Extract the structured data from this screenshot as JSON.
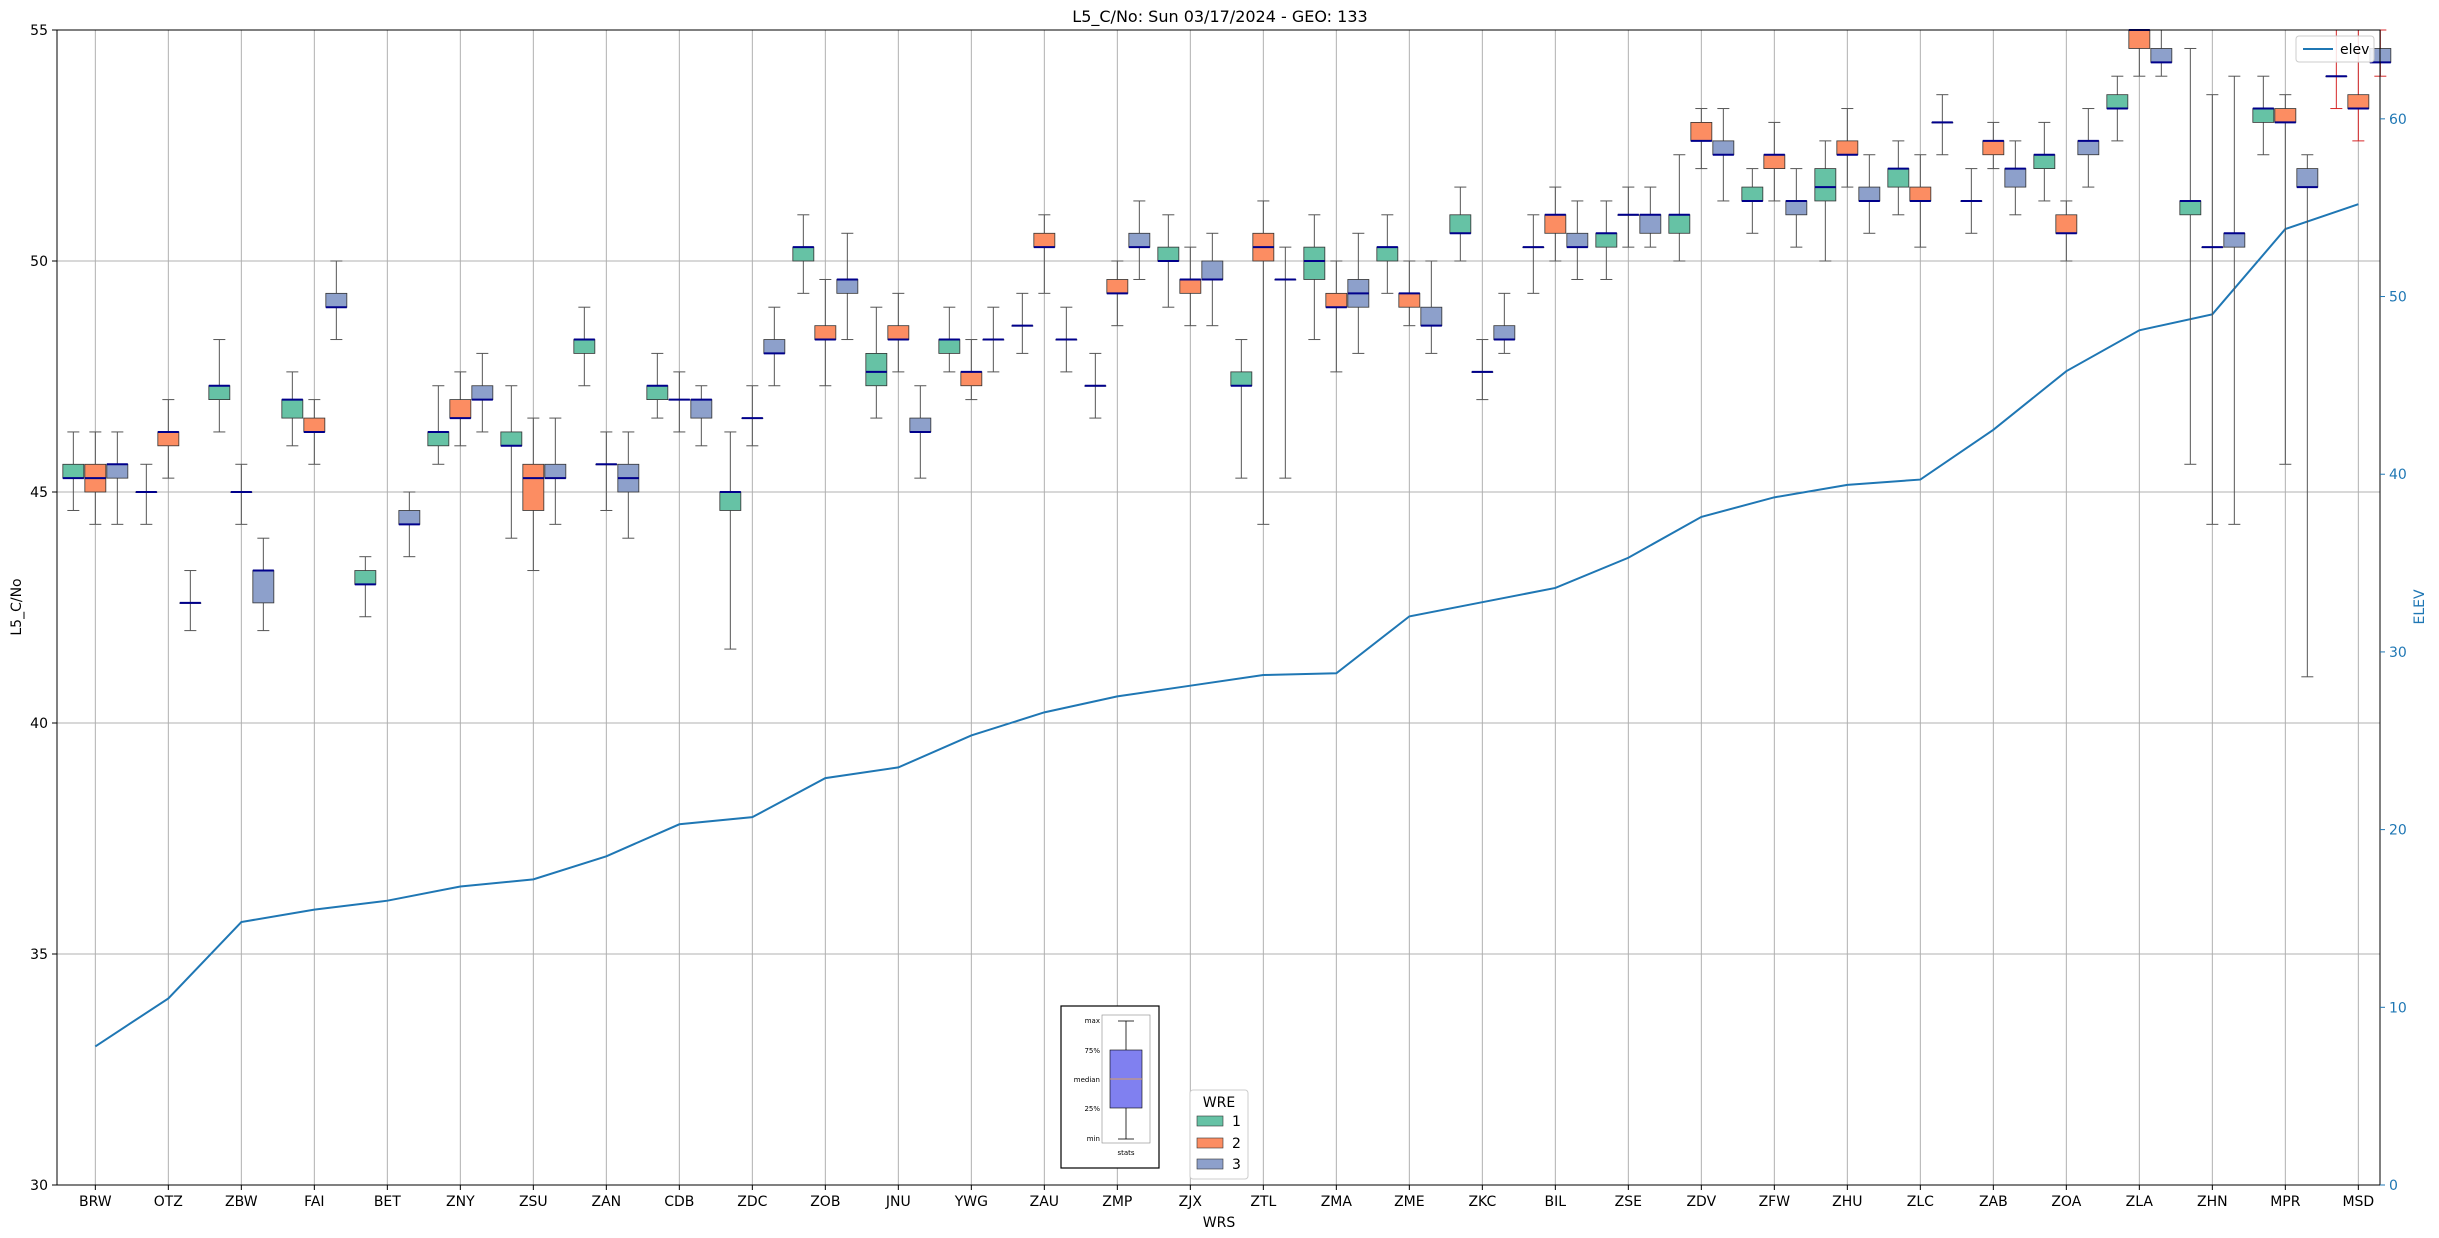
{
  "chart_data": {
    "type": "box",
    "title": "L5_C/No: Sun 03/17/2024 - GEO: 133",
    "xlabel": "WRS",
    "ylabel": "L5_C/No",
    "ylabel_right": "ELEV",
    "ylim": [
      30,
      55
    ],
    "ylim_right": [
      0,
      65
    ],
    "yticks": [
      30,
      35,
      40,
      45,
      50,
      55
    ],
    "yticks_right": [
      0,
      10,
      20,
      30,
      40,
      50,
      60
    ],
    "grid": true,
    "categories": [
      "BRW",
      "OTZ",
      "ZBW",
      "FAI",
      "BET",
      "ZNY",
      "ZSU",
      "ZAN",
      "CDB",
      "ZDC",
      "ZOB",
      "JNU",
      "YWG",
      "ZAU",
      "ZMP",
      "ZJX",
      "ZTL",
      "ZMA",
      "ZME",
      "ZKC",
      "BIL",
      "ZSE",
      "ZDV",
      "ZFW",
      "ZHU",
      "ZLC",
      "ZAB",
      "ZOA",
      "ZLA",
      "ZHN",
      "MPR",
      "MSD"
    ],
    "box_colors": {
      "1": "#66c2a5",
      "2": "#fc8d62",
      "3": "#8da0cb"
    },
    "median_color": "#00008b",
    "line_color": "#1f77b4",
    "boxes": [
      [
        [
          "1",
          45.3,
          45.6,
          45.3,
          44.6,
          46.3
        ],
        [
          "2",
          45.0,
          45.6,
          45.3,
          44.3,
          46.3
        ],
        [
          "3",
          45.3,
          45.6,
          45.6,
          44.3,
          46.3
        ]
      ],
      [
        [
          "1",
          45.0,
          45.0,
          45.0,
          44.3,
          45.6
        ],
        [
          "2",
          46.0,
          46.3,
          46.3,
          45.3,
          47.0
        ],
        [
          "3",
          42.6,
          42.6,
          42.6,
          42.0,
          43.3
        ]
      ],
      [
        [
          "1",
          47.0,
          47.3,
          47.3,
          46.3,
          48.3
        ],
        [
          "2",
          45.0,
          45.0,
          45.0,
          44.3,
          45.6
        ],
        [
          "3",
          42.6,
          43.3,
          43.3,
          42.0,
          44.0
        ]
      ],
      [
        [
          "1",
          46.6,
          47.0,
          47.0,
          46.0,
          47.6
        ],
        [
          "2",
          46.3,
          46.6,
          46.3,
          45.6,
          47.0
        ],
        [
          "3",
          49.0,
          49.3,
          49.0,
          48.3,
          50.0
        ]
      ],
      [
        [
          "1",
          43.0,
          43.3,
          43.0,
          42.3,
          43.6
        ],
        [
          "2",
          null,
          null,
          null,
          null,
          null
        ],
        [
          "3",
          44.3,
          44.6,
          44.3,
          43.6,
          45.0
        ]
      ],
      [
        [
          "1",
          46.0,
          46.3,
          46.3,
          45.6,
          47.3
        ],
        [
          "2",
          46.6,
          47.0,
          46.6,
          46.0,
          47.6
        ],
        [
          "3",
          47.0,
          47.3,
          47.0,
          46.3,
          48.0
        ]
      ],
      [
        [
          "1",
          46.0,
          46.3,
          46.0,
          44.0,
          47.3
        ],
        [
          "2",
          44.6,
          45.6,
          45.3,
          43.3,
          46.6
        ],
        [
          "3",
          45.3,
          45.6,
          45.3,
          44.3,
          46.6
        ]
      ],
      [
        [
          "1",
          48.0,
          48.3,
          48.3,
          47.3,
          49.0
        ],
        [
          "2",
          45.6,
          45.6,
          45.6,
          44.6,
          46.3
        ],
        [
          "3",
          45.0,
          45.6,
          45.3,
          44.0,
          46.3
        ]
      ],
      [
        [
          "1",
          47.0,
          47.3,
          47.3,
          46.6,
          48.0
        ],
        [
          "2",
          47.0,
          47.0,
          47.0,
          46.3,
          47.6
        ],
        [
          "3",
          46.6,
          47.0,
          47.0,
          46.0,
          47.3
        ]
      ],
      [
        [
          "1",
          44.6,
          45.0,
          45.0,
          41.6,
          46.3
        ],
        [
          "2",
          46.6,
          46.6,
          46.6,
          46.0,
          47.3
        ],
        [
          "3",
          48.0,
          48.3,
          48.0,
          47.3,
          49.0
        ]
      ],
      [
        [
          "1",
          50.0,
          50.3,
          50.3,
          49.3,
          51.0
        ],
        [
          "2",
          48.3,
          48.6,
          48.3,
          47.3,
          49.6
        ],
        [
          "3",
          49.3,
          49.6,
          49.6,
          48.3,
          50.6
        ]
      ],
      [
        [
          "1",
          47.3,
          48.0,
          47.6,
          46.6,
          49.0
        ],
        [
          "2",
          48.3,
          48.6,
          48.3,
          47.6,
          49.3
        ],
        [
          "3",
          46.3,
          46.6,
          46.3,
          45.3,
          47.3
        ]
      ],
      [
        [
          "1",
          48.0,
          48.3,
          48.3,
          47.6,
          49.0
        ],
        [
          "2",
          47.3,
          47.6,
          47.6,
          47.0,
          48.3
        ],
        [
          "3",
          48.3,
          48.3,
          48.3,
          47.6,
          49.0
        ]
      ],
      [
        [
          "1",
          48.6,
          48.6,
          48.6,
          48.0,
          49.3
        ],
        [
          "2",
          50.3,
          50.6,
          50.3,
          49.3,
          51.0
        ],
        [
          "3",
          48.3,
          48.3,
          48.3,
          47.6,
          49.0
        ]
      ],
      [
        [
          "1",
          47.3,
          47.3,
          47.3,
          46.6,
          48.0
        ],
        [
          "2",
          49.3,
          49.6,
          49.3,
          48.6,
          50.0
        ],
        [
          "3",
          50.3,
          50.6,
          50.3,
          49.6,
          51.3
        ]
      ],
      [
        [
          "1",
          50.0,
          50.3,
          50.0,
          49.0,
          51.0
        ],
        [
          "2",
          49.3,
          49.6,
          49.6,
          48.6,
          50.3
        ],
        [
          "3",
          49.6,
          50.0,
          49.6,
          48.6,
          50.6
        ]
      ],
      [
        [
          "1",
          47.3,
          47.6,
          47.3,
          45.3,
          48.3
        ],
        [
          "2",
          50.0,
          50.6,
          50.3,
          44.3,
          51.3
        ],
        [
          "3",
          49.6,
          49.6,
          49.6,
          45.3,
          50.3
        ]
      ],
      [
        [
          "1",
          49.6,
          50.3,
          50.0,
          48.3,
          51.0
        ],
        [
          "2",
          49.0,
          49.3,
          49.0,
          47.6,
          50.0
        ],
        [
          "3",
          49.0,
          49.6,
          49.3,
          48.0,
          50.6
        ]
      ],
      [
        [
          "1",
          50.0,
          50.3,
          50.3,
          49.3,
          51.0
        ],
        [
          "2",
          49.0,
          49.3,
          49.3,
          48.6,
          50.0
        ],
        [
          "3",
          48.6,
          49.0,
          48.6,
          48.0,
          50.0
        ]
      ],
      [
        [
          "1",
          50.6,
          51.0,
          50.6,
          50.0,
          51.6
        ],
        [
          "2",
          47.6,
          47.6,
          47.6,
          47.0,
          48.3
        ],
        [
          "3",
          48.3,
          48.6,
          48.3,
          48.0,
          49.3
        ]
      ],
      [
        [
          "1",
          50.3,
          50.3,
          50.3,
          49.3,
          51.0
        ],
        [
          "2",
          50.6,
          51.0,
          51.0,
          50.0,
          51.6
        ],
        [
          "3",
          50.3,
          50.6,
          50.3,
          49.6,
          51.3
        ]
      ],
      [
        [
          "1",
          50.3,
          50.6,
          50.6,
          49.6,
          51.3
        ],
        [
          "2",
          51.0,
          51.0,
          51.0,
          50.3,
          51.6
        ],
        [
          "3",
          50.6,
          51.0,
          51.0,
          50.3,
          51.6
        ]
      ],
      [
        [
          "1",
          50.6,
          51.0,
          51.0,
          50.0,
          52.3
        ],
        [
          "2",
          52.6,
          53.0,
          52.6,
          52.0,
          53.3
        ],
        [
          "3",
          52.3,
          52.6,
          52.3,
          51.3,
          53.3
        ]
      ],
      [
        [
          "1",
          51.3,
          51.6,
          51.3,
          50.6,
          52.0
        ],
        [
          "2",
          52.0,
          52.3,
          52.3,
          51.3,
          53.0
        ],
        [
          "3",
          51.0,
          51.3,
          51.3,
          50.3,
          52.0
        ]
      ],
      [
        [
          "1",
          51.3,
          52.0,
          51.6,
          50.0,
          52.6
        ],
        [
          "2",
          52.3,
          52.6,
          52.3,
          51.6,
          53.3
        ],
        [
          "3",
          51.3,
          51.6,
          51.3,
          50.6,
          52.3
        ]
      ],
      [
        [
          "1",
          51.6,
          52.0,
          52.0,
          51.0,
          52.6
        ],
        [
          "2",
          51.3,
          51.6,
          51.3,
          50.3,
          52.3
        ],
        [
          "3",
          53.0,
          53.0,
          53.0,
          52.3,
          53.6
        ]
      ],
      [
        [
          "1",
          51.3,
          51.3,
          51.3,
          50.6,
          52.0
        ],
        [
          "2",
          52.3,
          52.6,
          52.6,
          52.0,
          53.0
        ],
        [
          "3",
          51.6,
          52.0,
          52.0,
          51.0,
          52.6
        ]
      ],
      [
        [
          "1",
          52.0,
          52.3,
          52.3,
          51.3,
          53.0
        ],
        [
          "2",
          50.6,
          51.0,
          50.6,
          50.0,
          51.3
        ],
        [
          "3",
          52.3,
          52.6,
          52.6,
          51.6,
          53.3
        ]
      ],
      [
        [
          "1",
          53.3,
          53.6,
          53.3,
          52.6,
          54.0
        ],
        [
          "2",
          54.6,
          55.0,
          55.0,
          54.0,
          55.0
        ],
        [
          "3",
          54.3,
          54.6,
          54.3,
          54.0,
          55.0
        ]
      ],
      [
        [
          "1",
          51.0,
          51.3,
          51.3,
          45.6,
          54.6
        ],
        [
          "2",
          50.3,
          50.3,
          50.3,
          44.3,
          53.6
        ],
        [
          "3",
          50.3,
          50.6,
          50.6,
          44.3,
          54.0
        ]
      ],
      [
        [
          "1",
          53.0,
          53.3,
          53.3,
          52.3,
          54.0
        ],
        [
          "2",
          53.0,
          53.3,
          53.0,
          45.6,
          53.6
        ],
        [
          "3",
          51.6,
          52.0,
          51.6,
          41.0,
          52.3
        ]
      ],
      [
        [
          "1",
          54.0,
          54.0,
          54.0,
          53.3,
          55.0
        ],
        [
          "2",
          53.3,
          53.6,
          53.3,
          52.6,
          55.0
        ],
        [
          "3",
          54.3,
          54.6,
          54.3,
          54.0,
          55.0
        ]
      ]
    ],
    "elev_series": {
      "name": "elev",
      "values": [
        7.8,
        10.5,
        14.8,
        15.5,
        16.0,
        16.8,
        17.2,
        18.5,
        20.3,
        20.7,
        22.9,
        23.5,
        25.3,
        26.6,
        27.5,
        28.1,
        28.7,
        28.8,
        32.0,
        32.8,
        33.6,
        35.3,
        37.6,
        38.7,
        39.4,
        39.7,
        42.5,
        45.8,
        48.1,
        49.0,
        53.8,
        55.2
      ]
    },
    "legend_elev_label": "elev",
    "legend_wre": {
      "title": "WRE",
      "entries": [
        "1",
        "2",
        "3"
      ]
    },
    "inset_labels": {
      "max": "max",
      "q75": "75%",
      "median": "median",
      "q25": "25%",
      "min": "min",
      "xlabel": "stats"
    }
  }
}
